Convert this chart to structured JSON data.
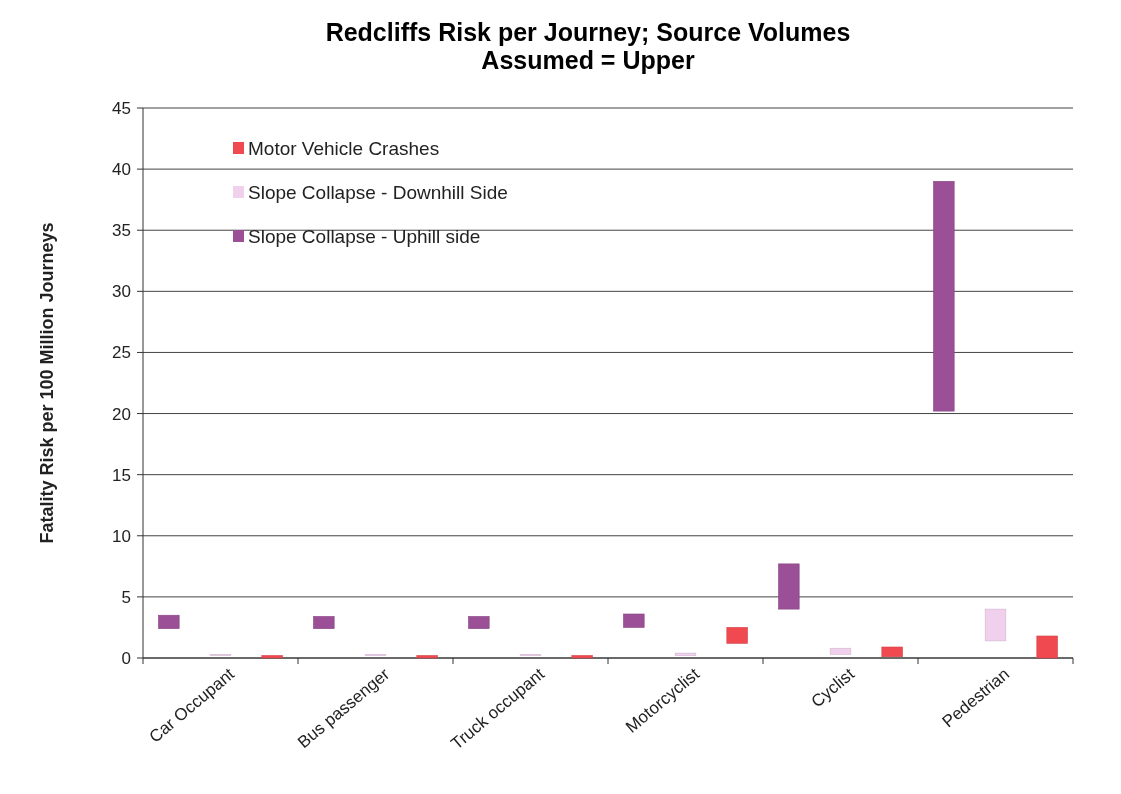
{
  "chart_data": {
    "type": "bar",
    "title": "Redcliffs Risk per Journey; Source Volumes Assumed = Upper",
    "ylabel": "Fatality Risk per 100 Million Journeys",
    "categories": [
      "Car Occupant",
      "Bus passenger",
      "Truck occupant",
      "Motorcyclist",
      "Cyclist",
      "Pedestrian"
    ],
    "series": [
      {
        "name": "Slope Collapse - Uphill side",
        "color": "#9b4f96",
        "base": [
          2.4,
          2.4,
          2.4,
          2.5,
          4.0,
          20.2
        ],
        "values": [
          1.1,
          1.0,
          1.0,
          1.1,
          3.7,
          18.8
        ]
      },
      {
        "name": "Slope Collapse - Downhill Side",
        "color": "#f0d0ec",
        "base": [
          0.2,
          0.2,
          0.2,
          0.2,
          0.3,
          1.4
        ],
        "values": [
          0.1,
          0.1,
          0.1,
          0.2,
          0.5,
          2.6
        ]
      },
      {
        "name": "Motor Vehicle Crashes",
        "color": "#f04a50",
        "base": [
          0,
          0,
          0,
          1.2,
          0.1,
          0
        ],
        "values": [
          0.2,
          0.2,
          0.2,
          1.3,
          0.8,
          1.8
        ]
      }
    ],
    "ylim": [
      0,
      45
    ],
    "yticks": [
      0,
      5,
      10,
      15,
      20,
      25,
      30,
      35,
      40,
      45
    ],
    "grid": "y",
    "legend": "top left"
  }
}
